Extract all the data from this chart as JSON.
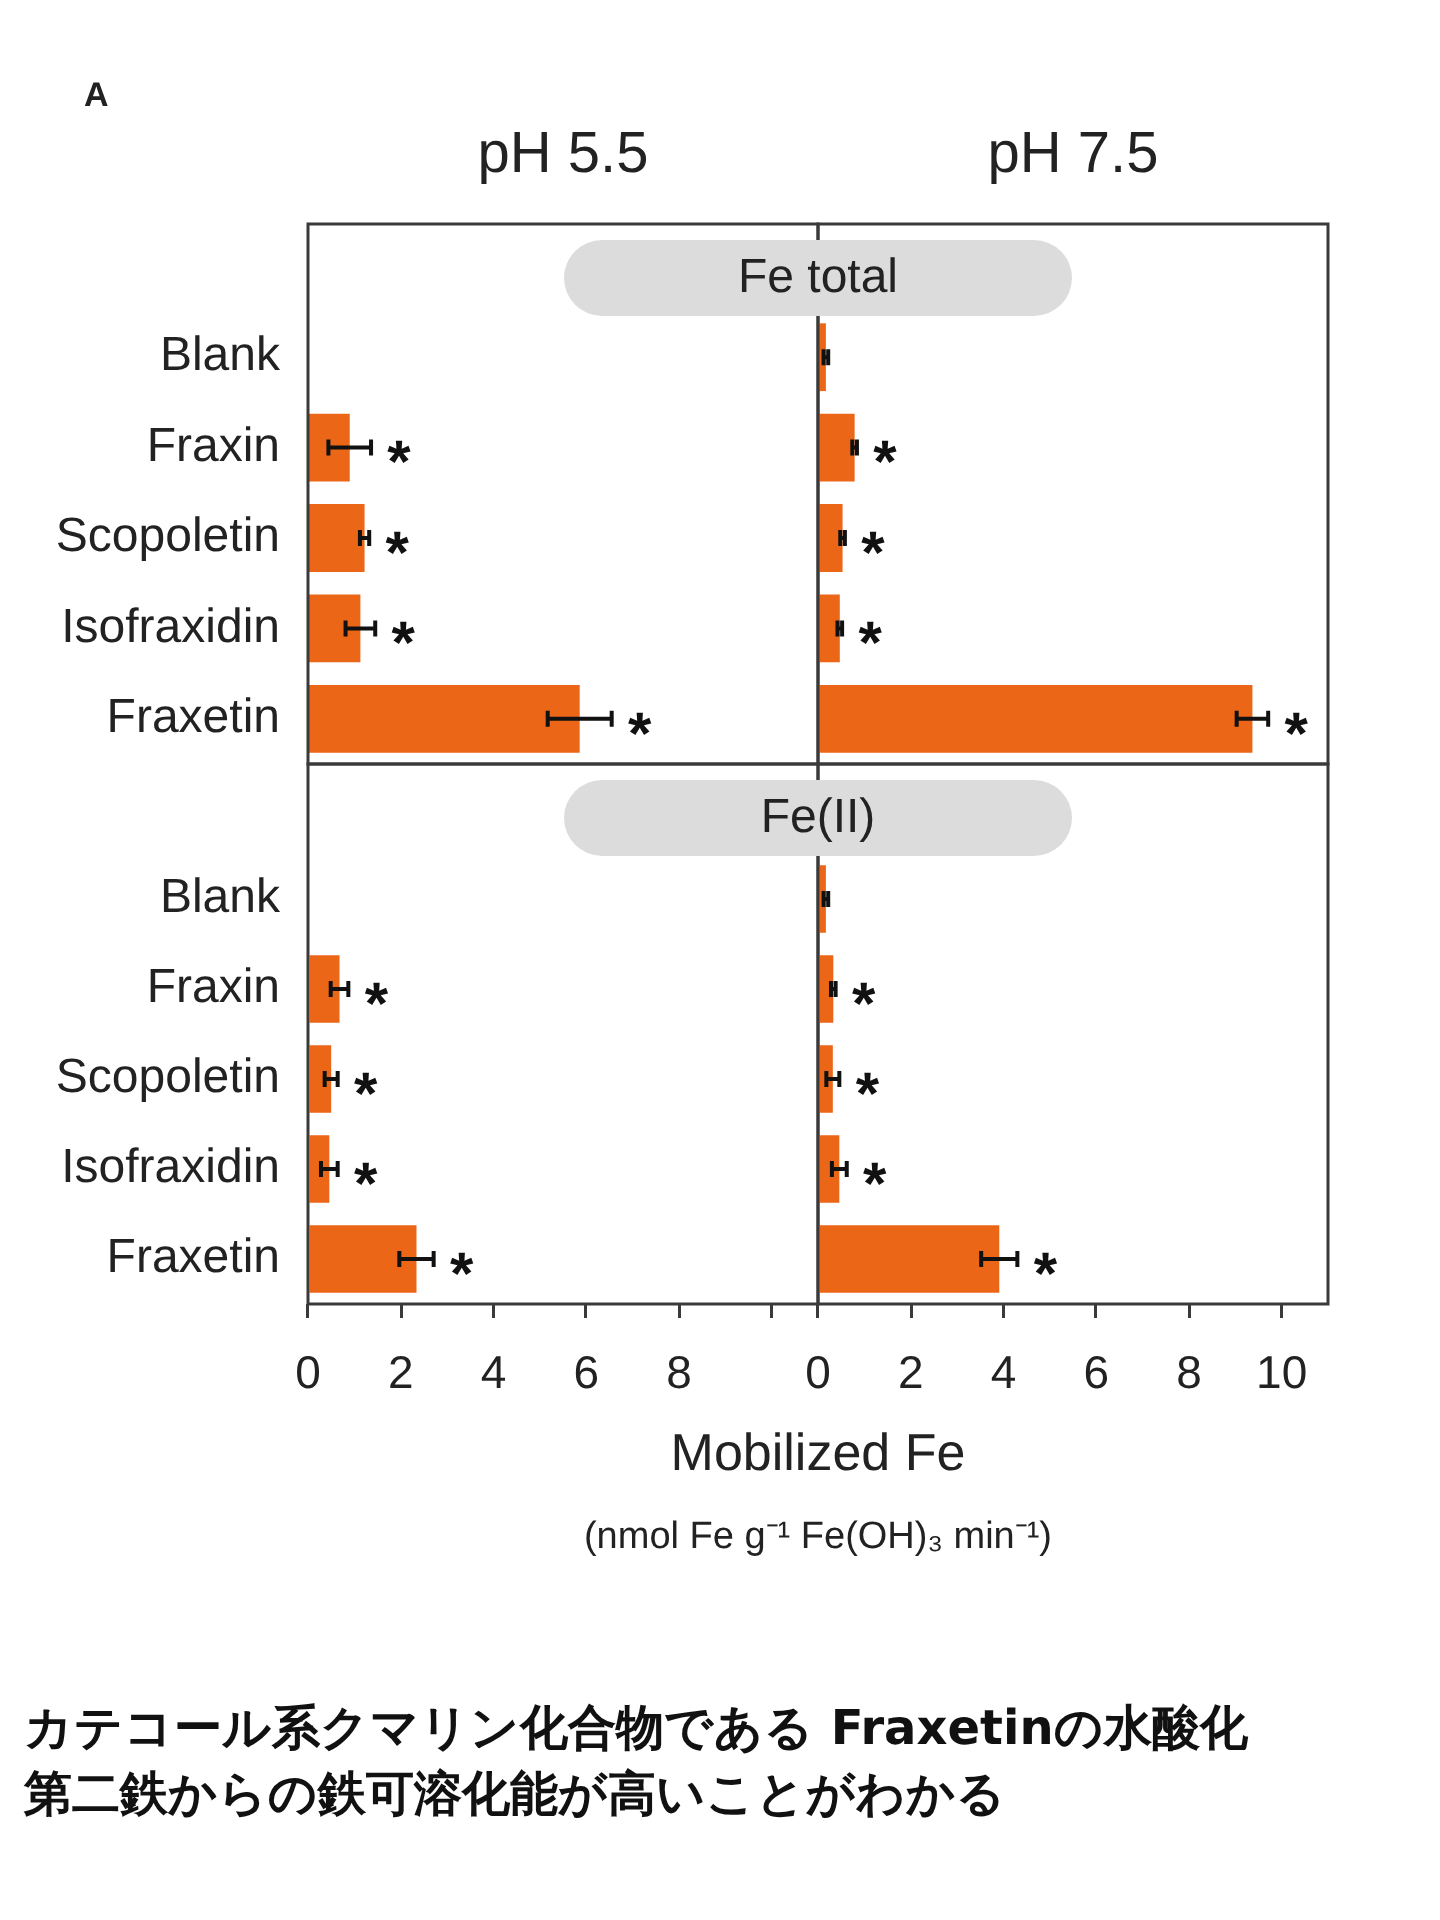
{
  "chart_data": [
    {
      "type": "bar",
      "orientation": "horizontal",
      "title": "pH 5.5",
      "subtitle": "Fe total",
      "categories": [
        "Blank",
        "Fraxin",
        "Scopoletin",
        "Isofraxidin",
        "Fraxetin"
      ],
      "values": [
        0,
        0.9,
        1.22,
        1.13,
        5.86
      ],
      "errors": [
        null,
        0.46,
        0.1,
        0.32,
        0.69
      ],
      "color": "#eb6617",
      "xlim": [
        0,
        11
      ],
      "tick_labels": "y",
      "annotations": [
        "A",
        {
          "text": "*",
          "x": 0.9,
          "y": "Fraxin"
        },
        {
          "text": "*",
          "x": 1.22,
          "y": "Scopoletin"
        },
        {
          "text": "*",
          "x": 1.13,
          "y": "Isofraxidin"
        },
        {
          "text": "*",
          "x": 5.86,
          "y": "Fraxetin"
        }
      ]
    },
    {
      "type": "bar",
      "orientation": "horizontal",
      "title": "pH 7.5",
      "categories": [
        "Blank",
        "Fraxin",
        "Scopoletin",
        "Isofraxidin",
        "Fraxetin"
      ],
      "values": [
        0.17,
        0.79,
        0.53,
        0.47,
        9.37
      ],
      "errors": [
        0.05,
        0.05,
        0.05,
        0.05,
        0.34
      ],
      "color": "#eb6617",
      "xlim": [
        0,
        11
      ],
      "tick_labels": false,
      "annotations": [
        {
          "text": "*",
          "x": 0.79,
          "y": "Fraxin"
        },
        {
          "text": "*",
          "x": 0.53,
          "y": "Scopoletin"
        },
        {
          "text": "*",
          "x": 0.47,
          "y": "Isofraxidin"
        },
        {
          "text": "*",
          "x": 9.37,
          "y": "Fraxetin"
        }
      ]
    },
    {
      "type": "bar",
      "orientation": "horizontal",
      "subtitle": "Fe(II)",
      "xlabel": "Mobilized Fe\n(nmol Fe g⁻¹ Fe(OH)₃ min⁻¹)",
      "categories": [
        "Blank",
        "Fraxin",
        "Scopoletin",
        "Isofraxidin",
        "Fraxetin"
      ],
      "values": [
        0,
        0.68,
        0.5,
        0.46,
        2.34
      ],
      "errors": [
        null,
        0.19,
        0.14,
        0.18,
        0.37
      ],
      "color": "#eb6617",
      "xlim": [
        0,
        11
      ],
      "xticks": [
        0,
        2,
        4,
        6,
        8,
        {
          "value": 10,
          "label": null
        }
      ],
      "annotations": [
        {
          "text": "*",
          "x": 0.68,
          "y": "Fraxin"
        },
        {
          "text": "*",
          "x": 0.5,
          "y": "Scopoletin"
        },
        {
          "text": "*",
          "x": 0.46,
          "y": "Isofraxidin"
        },
        {
          "text": "*",
          "x": 2.34,
          "y": "Fraxetin"
        },
        "カテコール系クマリン化合物である Fraxetinの水酸化第二鉄からの鉄可溶化能が高いことがわかる"
      ]
    },
    {
      "type": "bar",
      "orientation": "horizontal",
      "categories": [
        "Blank",
        "Fraxin",
        "Scopoletin",
        "Isofraxidin",
        "Fraxetin"
      ],
      "values": [
        0.17,
        0.33,
        0.32,
        0.46,
        3.91
      ],
      "errors": [
        0.05,
        0.05,
        0.14,
        0.16,
        0.39
      ],
      "color": "#eb6617",
      "xlim": [
        0,
        11
      ],
      "xticks": [
        0,
        2,
        4,
        6,
        8,
        10
      ],
      "tick_labels": "x",
      "annotations": [
        {
          "text": "*",
          "x": 0.33,
          "y": "Fraxin"
        },
        {
          "text": "*",
          "x": 0.32,
          "y": "Scopoletin"
        },
        {
          "text": "*",
          "x": 0.46,
          "y": "Isofraxidin"
        },
        {
          "text": "*",
          "x": 3.91,
          "y": "Fraxetin"
        }
      ]
    }
  ]
}
